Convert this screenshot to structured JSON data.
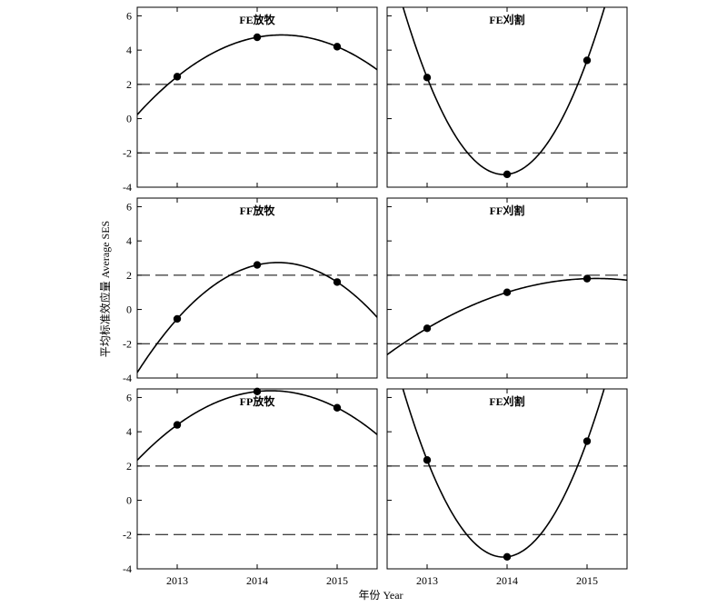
{
  "chart_data": {
    "type": "scatter",
    "ylabel": "平均标准效应量 Average SES",
    "xlabel": "年份 Year",
    "x_ticks": [
      "2013",
      "2014",
      "2015"
    ],
    "y_ticks": [
      "6",
      "4",
      "2",
      "0",
      "-2",
      "-4"
    ],
    "xlim": [
      2012.5,
      2015.5
    ],
    "ylim": [
      -4,
      6.5
    ],
    "reference_lines": [
      2,
      -2
    ],
    "grid": false,
    "legend": "none",
    "panels": [
      {
        "title": "FE放牧",
        "x": [
          2013,
          2014,
          2015
        ],
        "y": [
          2.45,
          4.75,
          4.2
        ]
      },
      {
        "title": "FE刈割",
        "x": [
          2013,
          2014,
          2015
        ],
        "y": [
          2.4,
          -3.25,
          3.4
        ]
      },
      {
        "title": "FF放牧",
        "x": [
          2013,
          2014,
          2015
        ],
        "y": [
          -0.55,
          2.6,
          1.6
        ]
      },
      {
        "title": "FF刈割",
        "x": [
          2013,
          2014,
          2015
        ],
        "y": [
          -1.1,
          1.0,
          1.8
        ]
      },
      {
        "title": "FP放牧",
        "x": [
          2013,
          2014,
          2015
        ],
        "y": [
          4.4,
          6.35,
          5.4
        ]
      },
      {
        "title": "FE刈割",
        "x": [
          2013,
          2014,
          2015
        ],
        "y": [
          2.35,
          -3.3,
          3.45
        ]
      }
    ]
  }
}
